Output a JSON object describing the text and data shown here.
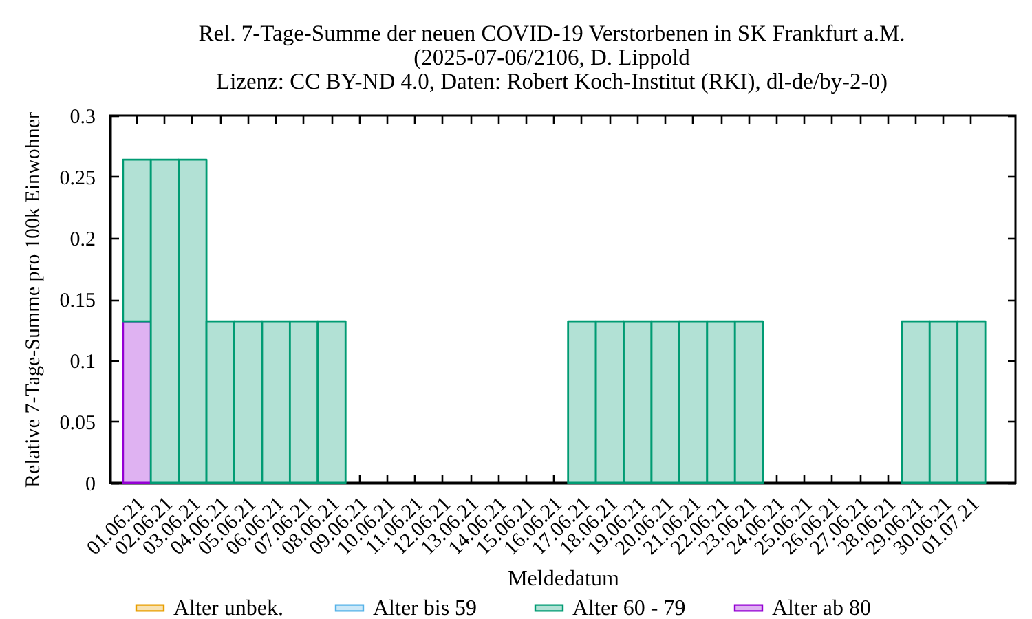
{
  "chart_data": {
    "type": "bar",
    "title": "Rel. 7-Tage-Summe der neuen COVID-19 Verstorbenen in SK Frankfurt a.M.\n(2025-07-06/2106, D. Lippold\nLizenz: CC BY-ND 4.0, Daten: Robert Koch-Institut (RKI), dl-de/by-2-0)",
    "xlabel": "Meldedatum",
    "ylabel": "Relative 7-Tage-Summe pro 100k Einwohner",
    "categories": [
      "01.06.21",
      "02.06.21",
      "03.06.21",
      "04.06.21",
      "05.06.21",
      "06.06.21",
      "07.06.21",
      "08.06.21",
      "09.06.21",
      "10.06.21",
      "11.06.21",
      "12.06.21",
      "13.06.21",
      "14.06.21",
      "15.06.21",
      "16.06.21",
      "17.06.21",
      "18.06.21",
      "19.06.21",
      "20.06.21",
      "21.06.21",
      "22.06.21",
      "23.06.21",
      "24.06.21",
      "25.06.21",
      "26.06.21",
      "27.06.21",
      "28.06.21",
      "29.06.21",
      "30.06.21",
      "01.07.21"
    ],
    "series": [
      {
        "name": "Alter ab 80",
        "color": "#dfb2f2",
        "values": [
          0.132,
          null,
          null,
          null,
          null,
          null,
          null,
          null,
          null,
          null,
          null,
          null,
          null,
          null,
          null,
          null,
          null,
          null,
          null,
          null,
          null,
          null,
          null,
          null,
          null,
          null,
          null,
          null,
          null,
          null,
          null
        ]
      },
      {
        "name": "Alter 60 - 79",
        "color": "#b2e1d5",
        "values": [
          0.132,
          0.264,
          0.264,
          0.132,
          0.132,
          0.132,
          0.132,
          0.132,
          null,
          null,
          null,
          null,
          null,
          null,
          null,
          null,
          0.132,
          0.132,
          0.132,
          0.132,
          0.132,
          0.132,
          0.132,
          null,
          null,
          null,
          null,
          null,
          0.132,
          0.132,
          0.132
        ]
      },
      {
        "name": "Alter bis 59",
        "color": "#cce8f8",
        "values": [
          null,
          null,
          null,
          null,
          null,
          null,
          null,
          null,
          null,
          null,
          null,
          null,
          null,
          null,
          null,
          null,
          null,
          null,
          null,
          null,
          null,
          null,
          null,
          null,
          null,
          null,
          null,
          null,
          null,
          null,
          null
        ]
      },
      {
        "name": "Alter unbek.",
        "color": "#f8e2b2",
        "values": [
          null,
          null,
          null,
          null,
          null,
          null,
          null,
          null,
          null,
          null,
          null,
          null,
          null,
          null,
          null,
          null,
          null,
          null,
          null,
          null,
          null,
          null,
          null,
          null,
          null,
          null,
          null,
          null,
          null,
          null,
          null
        ]
      }
    ],
    "stacked": true,
    "ylim": [
      0,
      0.3
    ],
    "yticks": [
      0,
      0.05,
      0.1,
      0.15,
      0.2,
      0.25,
      0.3
    ],
    "legend": "bottom"
  }
}
